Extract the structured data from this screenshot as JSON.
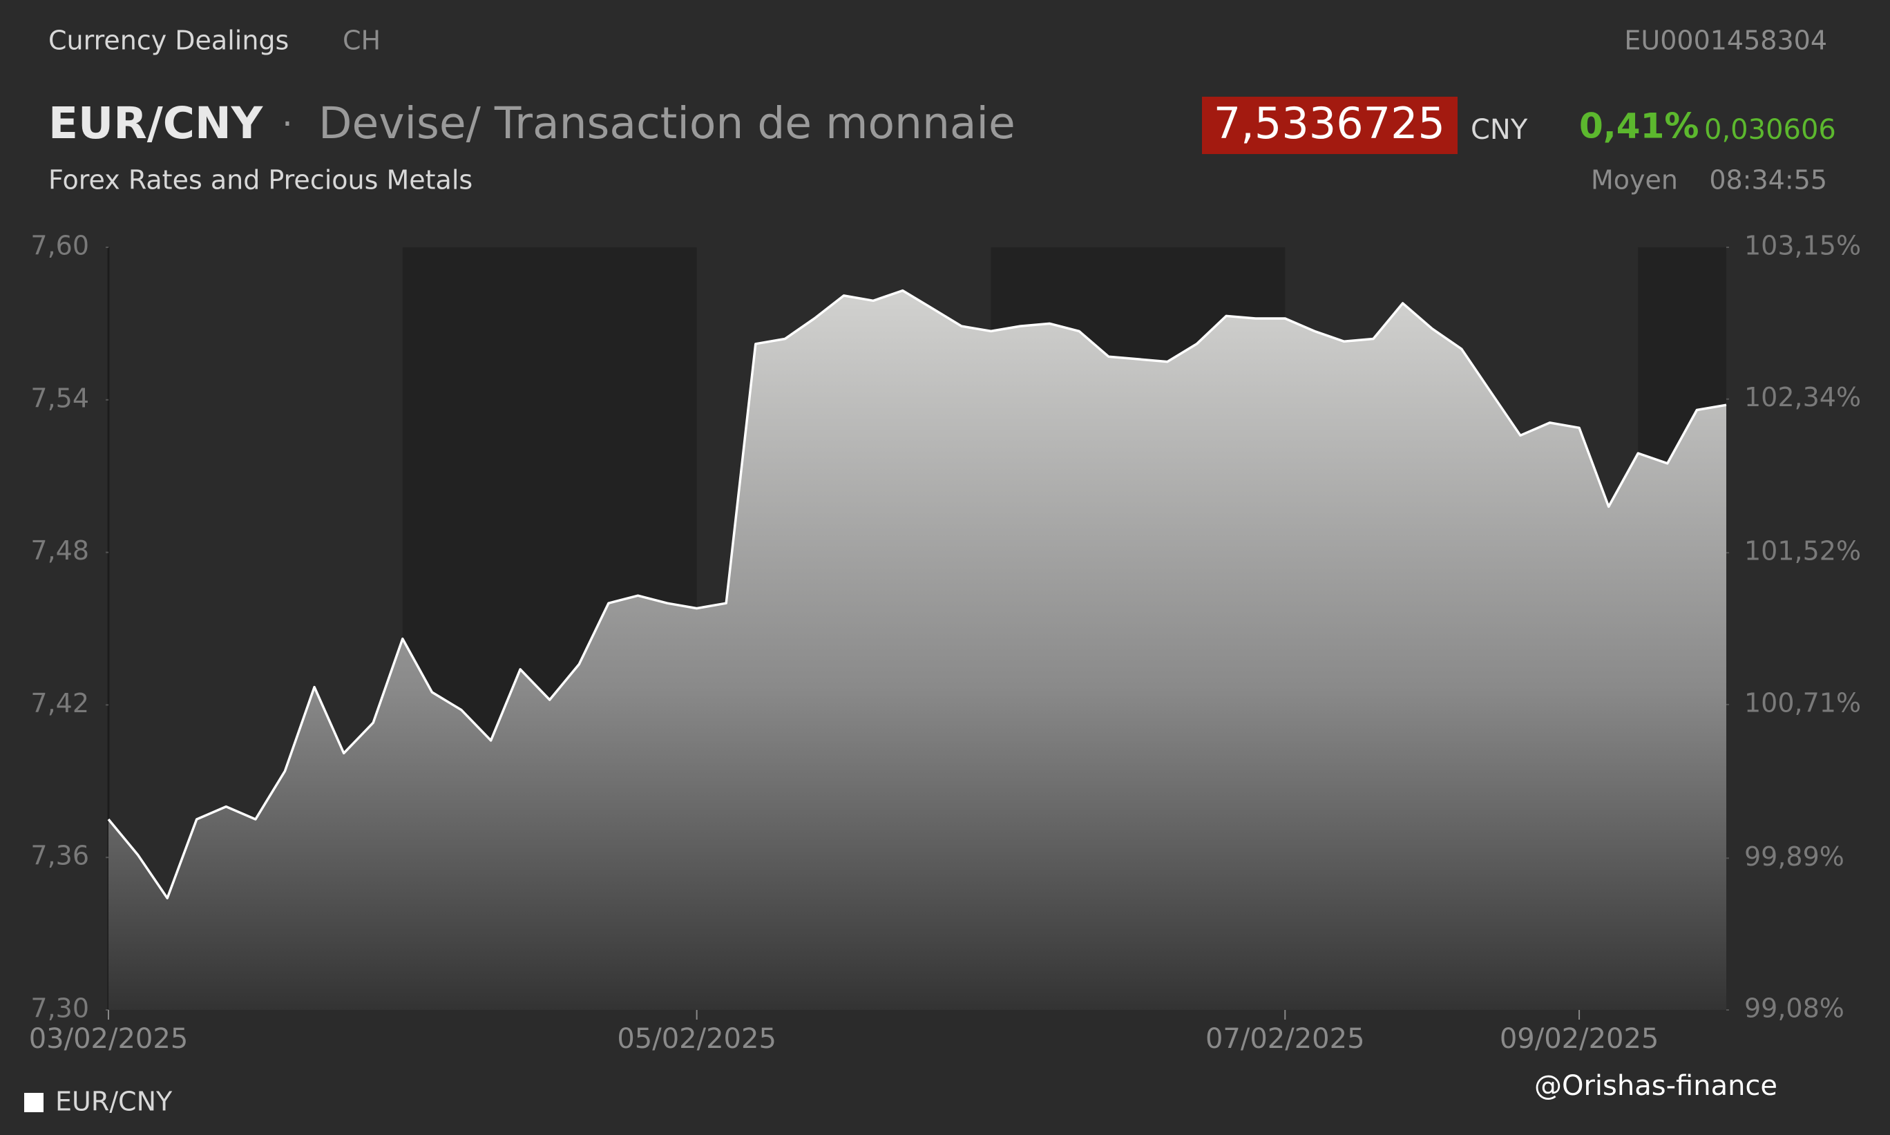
{
  "header": {
    "source": "Currency Dealings",
    "market": "CH",
    "isin": "EU0001458304",
    "symbol": "EUR/CNY",
    "separator": "·",
    "description": "Devise/ Transaction de monnaie",
    "category": "Forex Rates and Precious Metals",
    "price": "7,5336725",
    "currency": "CNY",
    "change_pct": "0,41%",
    "change_abs": "0,030606",
    "price_type": "Moyen",
    "time": "08:34:55"
  },
  "watermark": "@Orishas-finance",
  "chart_data": {
    "type": "area",
    "categories": [
      "03/02/2025",
      null,
      null,
      null,
      null,
      null,
      null,
      null,
      null,
      null,
      null,
      null,
      null,
      null,
      null,
      null,
      null,
      null,
      null,
      null,
      "05/02/2025",
      null,
      null,
      null,
      null,
      null,
      null,
      null,
      null,
      null,
      null,
      null,
      null,
      null,
      null,
      null,
      null,
      null,
      null,
      null,
      "07/02/2025",
      null,
      null,
      null,
      null,
      null,
      null,
      null,
      null,
      null,
      "09/02/2025",
      null,
      null,
      null,
      null,
      null
    ],
    "series": [
      {
        "name": "EUR/CNY",
        "color": "#ffffff",
        "values": [
          7.375,
          7.361,
          7.344,
          7.375,
          7.38,
          7.375,
          7.394,
          7.427,
          7.401,
          7.413,
          7.446,
          7.425,
          7.418,
          7.406,
          7.434,
          7.422,
          7.436,
          7.46,
          7.463,
          7.46,
          7.458,
          7.46,
          7.562,
          7.564,
          7.572,
          7.581,
          7.579,
          7.583,
          7.576,
          7.569,
          7.567,
          7.569,
          7.57,
          7.567,
          7.557,
          7.556,
          7.555,
          7.562,
          7.573,
          7.572,
          7.572,
          7.567,
          7.563,
          7.564,
          7.578,
          7.568,
          7.56,
          7.543,
          7.526,
          7.531,
          7.529,
          7.498,
          7.519,
          7.515,
          7.536,
          7.538
        ]
      }
    ],
    "ylim": [
      7.3,
      7.6
    ],
    "yticks": [
      {
        "value": 7.3,
        "label": "7,30"
      },
      {
        "value": 7.36,
        "label": "7,36"
      },
      {
        "value": 7.42,
        "label": "7,42"
      },
      {
        "value": 7.48,
        "label": "7,48"
      },
      {
        "value": 7.54,
        "label": "7,54"
      },
      {
        "value": 7.6,
        "label": "7,60"
      }
    ],
    "y2lim": [
      99.08,
      103.15
    ],
    "y2ticks": [
      {
        "value": 99.08,
        "label": "99,08%"
      },
      {
        "value": 99.89,
        "label": "99,89%"
      },
      {
        "value": 100.71,
        "label": "100,71%"
      },
      {
        "value": 101.52,
        "label": "101,52%"
      },
      {
        "value": 102.34,
        "label": "102,34%"
      },
      {
        "value": 103.15,
        "label": "103,15%"
      }
    ]
  }
}
